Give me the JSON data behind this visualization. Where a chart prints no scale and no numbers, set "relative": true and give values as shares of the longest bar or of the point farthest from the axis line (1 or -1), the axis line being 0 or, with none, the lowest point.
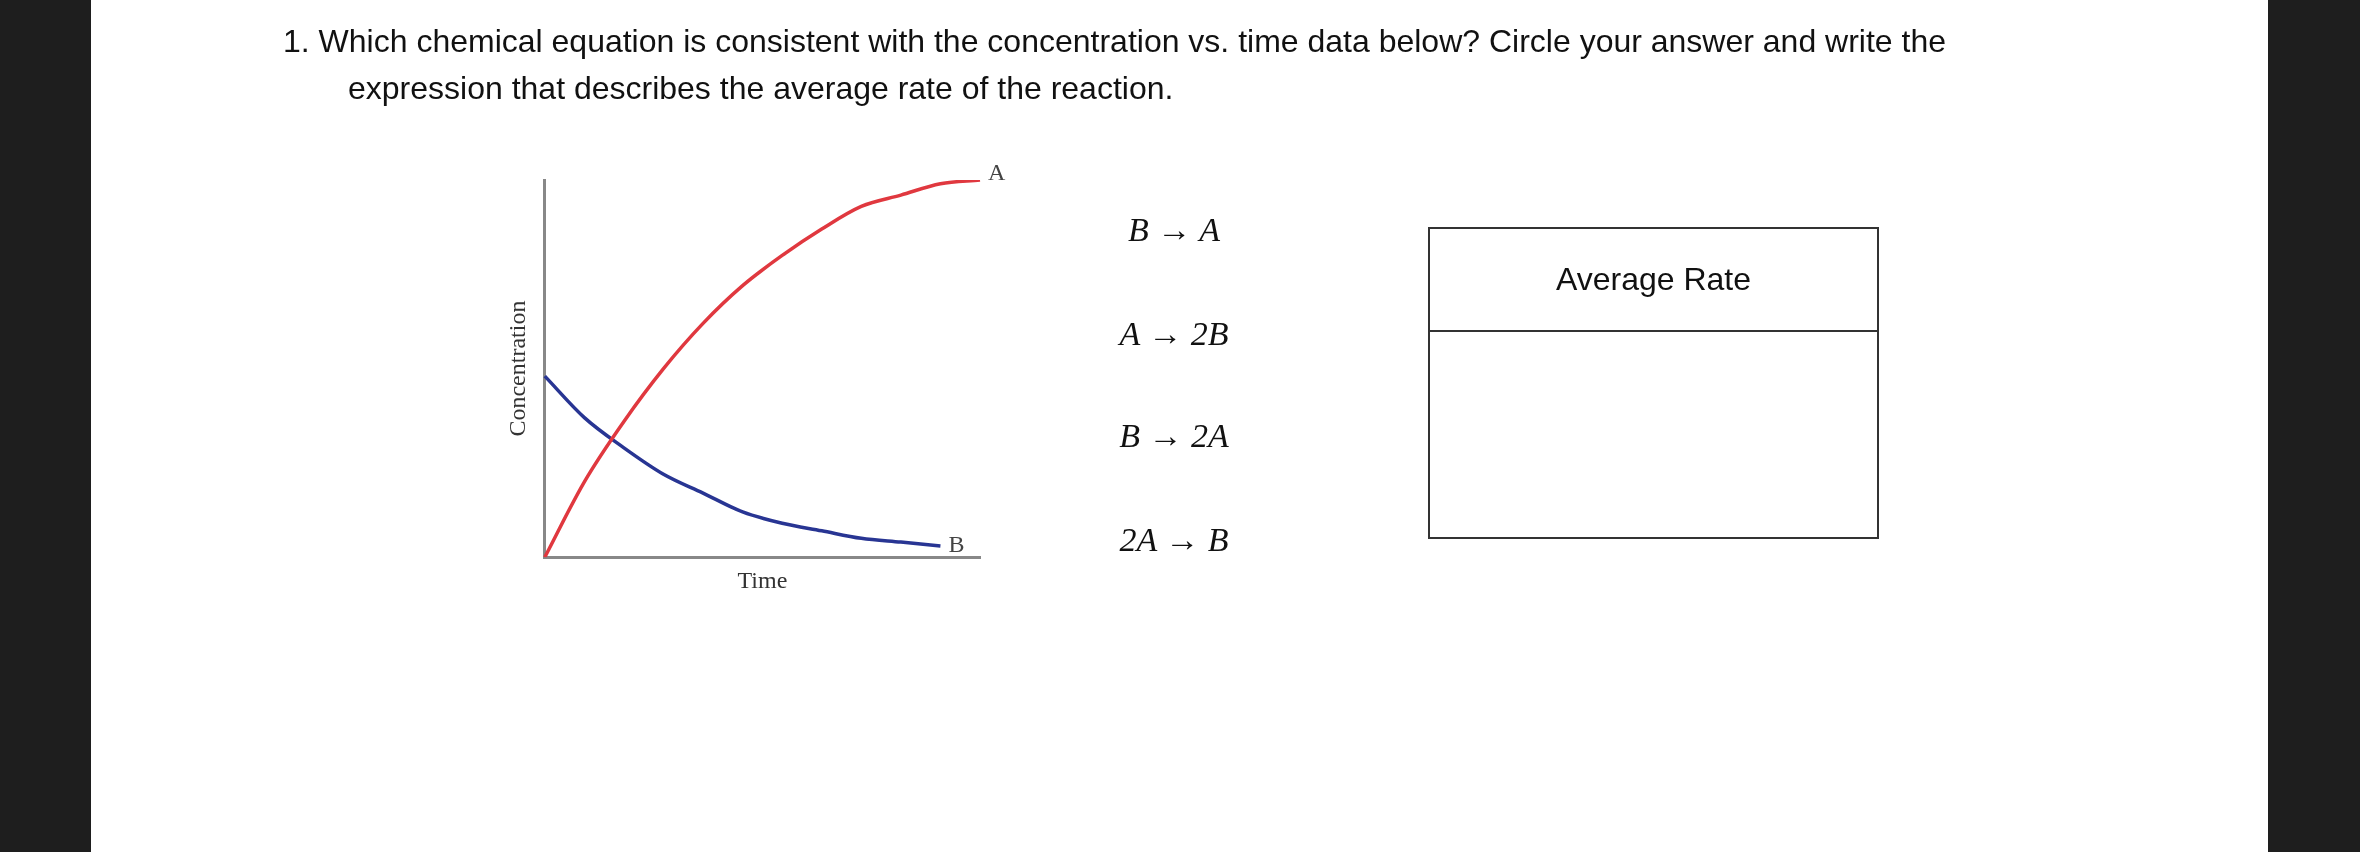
{
  "chart_data": {
    "type": "line",
    "title": "1. Which chemical equation is consistent with the concentration vs. time data below? Circle your answer and write the expression that describes the average rate of the reaction.",
    "xlabel": "Time",
    "ylabel": "Concentration",
    "relative": true,
    "categories": [
      null,
      null,
      null,
      null,
      null,
      null,
      null,
      null,
      null,
      null,
      null,
      null
    ],
    "series": [
      {
        "name": "A",
        "color": "#e0383f",
        "values": [
          0,
          0.2,
          0.36,
          0.5,
          0.62,
          0.72,
          0.8,
          0.87,
          0.93,
          0.96,
          0.99,
          1
        ]
      },
      {
        "name": "B",
        "color": "#283593",
        "values": [
          0.48,
          0.37,
          0.29,
          0.22,
          0.17,
          0.12,
          0.09,
          0.07,
          0.05,
          0.04,
          0.03,
          null
        ]
      }
    ],
    "annotations": [
      "B → A",
      "A → 2B",
      "B → 2A",
      "2A → B",
      "Average Rate"
    ],
    "legend": false,
    "grid": false,
    "marker": "none"
  }
}
